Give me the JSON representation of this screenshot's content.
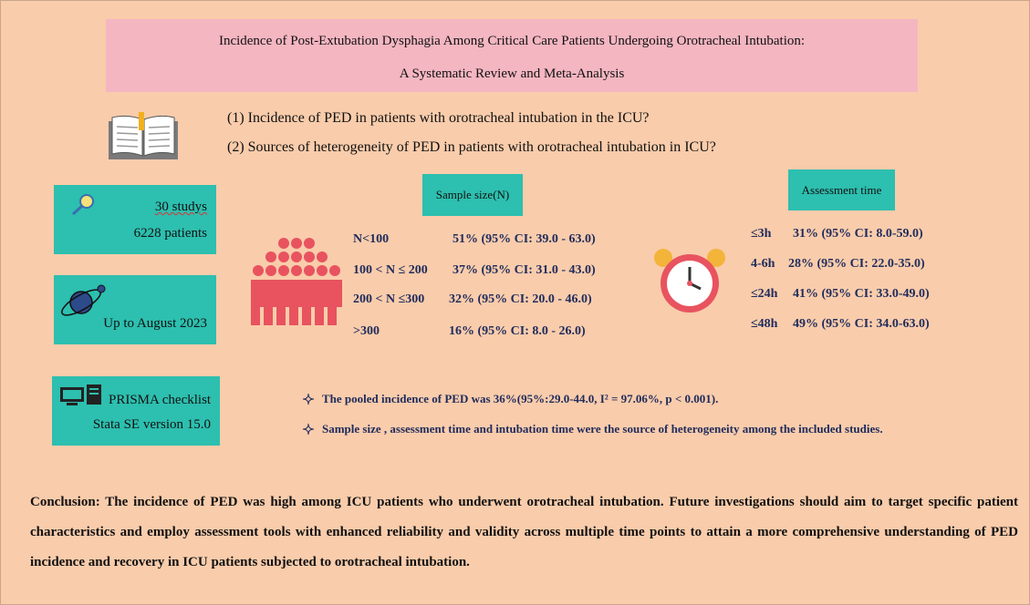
{
  "header": {
    "title_line1": "Incidence of Post-Extubation Dysphagia Among Critical Care Patients Undergoing Orotracheal Intubation:",
    "title_line2": "A Systematic Review and Meta-Analysis"
  },
  "questions": [
    "(1)  Incidence of PED in patients with orotracheal intubation in the ICU?",
    "(2)  Sources of heterogeneity of PED in patients with orotracheal intubation in ICU?"
  ],
  "info_boxes": [
    {
      "lines": [
        "30 studys",
        "6228 patients"
      ]
    },
    {
      "lines": [
        "Up to August 2023"
      ]
    },
    {
      "lines": [
        "PRISMA checklist",
        "Stata SE version 15.0"
      ]
    }
  ],
  "sample_size": {
    "heading": "Sample size(N)",
    "rows": [
      {
        "group": "N<100",
        "result": "51% (95% CI: 39.0 - 63.0)"
      },
      {
        "group": "100 < N ≤ 200",
        "result": "37% (95% CI: 31.0 - 43.0)"
      },
      {
        "group": "200 < N ≤300",
        "result": "32% (95% CI: 20.0 - 46.0)"
      },
      {
        "group": ">300",
        "result": "16% (95% CI: 8.0 - 26.0)"
      }
    ]
  },
  "assessment_time": {
    "heading": "Assessment time",
    "rows": [
      {
        "group": "≤3h",
        "result": "31% (95% CI: 8.0-59.0)"
      },
      {
        "group": "4-6h",
        "result": "28% (95% CI: 22.0-35.0)"
      },
      {
        "group": "≤24h",
        "result": "41% (95% CI: 33.0-49.0)"
      },
      {
        "group": "≤48h",
        "result": "49% (95% CI: 34.0-63.0)"
      }
    ]
  },
  "findings": [
    "The pooled incidence of PED was 36%(95%:29.0-44.0,    I² = 97.06%, p < 0.001).",
    "Sample size , assessment time and intubation time were the source of heterogeneity among the included studies."
  ],
  "conclusion": "Conclusion: The incidence of PED was high among ICU patients who underwent orotracheal intubation. Future investigations should aim to target specific patient characteristics and employ assessment tools with enhanced reliability and validity across multiple time points to attain a more comprehensive understanding of PED incidence and recovery in ICU patients subjected to orotracheal intubation."
}
